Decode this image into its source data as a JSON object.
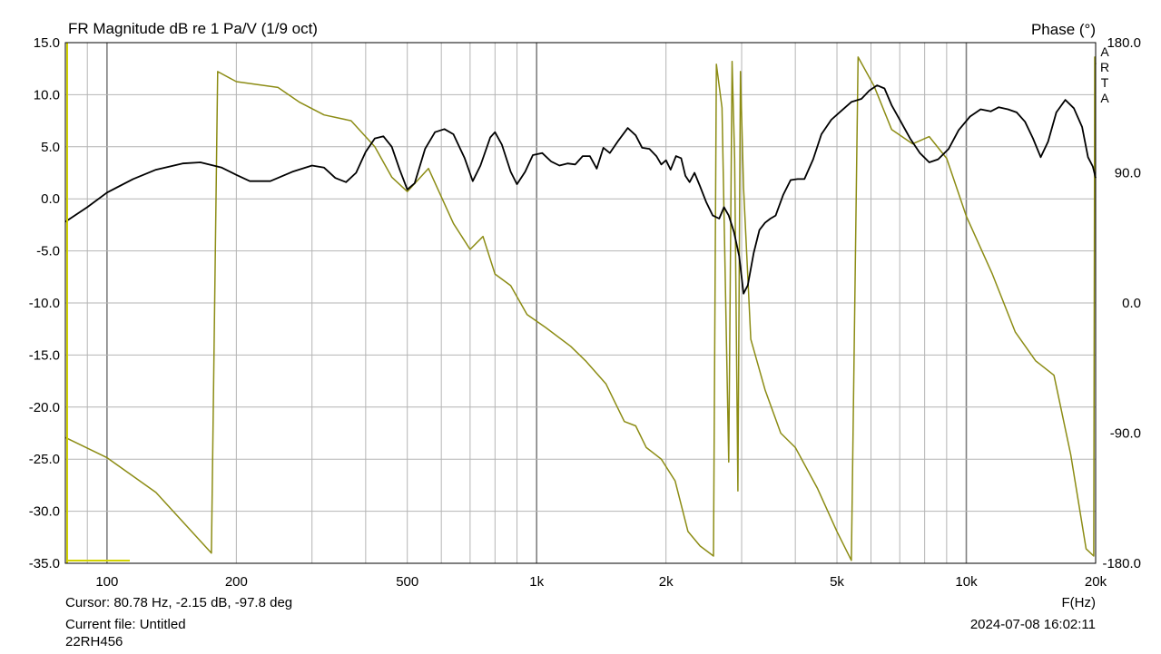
{
  "app": {
    "title": "FR Magnitude dB re 1 Pa/V (1/9 oct)",
    "right_title": "Phase (°)",
    "brand": "ARTA",
    "x_unit": "F(Hz)",
    "cursor": "Cursor: 80.78 Hz, -2.15 dB, -97.8 deg",
    "current_file": "Current file: Untitled",
    "model": "22RH456",
    "timestamp": "2024-07-08  16:02:11"
  },
  "colors": {
    "background": "#ffffff",
    "grid": "#b4b4b4",
    "grid_major": "#808080",
    "magnitude": "#000000",
    "phase": "#8c8c14",
    "marker": "#d2d200"
  },
  "chart_data": {
    "type": "line",
    "title": "FR Magnitude dB re 1 Pa/V (1/9 oct)",
    "xlabel": "F(Hz)",
    "ylabel": "",
    "y2label": "Phase (°)",
    "x_scale": "log",
    "xlim": [
      80,
      20000
    ],
    "ylim": [
      -35,
      15
    ],
    "y2lim": [
      -180,
      180
    ],
    "grid": true,
    "x_tick_labels": [
      {
        "value": 100,
        "label": "100"
      },
      {
        "value": 200,
        "label": "200"
      },
      {
        "value": 500,
        "label": "500"
      },
      {
        "value": 1000,
        "label": "1k"
      },
      {
        "value": 2000,
        "label": "2k"
      },
      {
        "value": 5000,
        "label": "5k"
      },
      {
        "value": 10000,
        "label": "10k"
      },
      {
        "value": 20000,
        "label": "20k"
      }
    ],
    "y_ticks": [
      {
        "value": 15,
        "label": "15.0"
      },
      {
        "value": 10,
        "label": "10.0"
      },
      {
        "value": 5,
        "label": "5.0"
      },
      {
        "value": 0,
        "label": "0.0"
      },
      {
        "value": -5,
        "label": "-5.0"
      },
      {
        "value": -10,
        "label": "-10.0"
      },
      {
        "value": -15,
        "label": "-15.0"
      },
      {
        "value": -20,
        "label": "-20.0"
      },
      {
        "value": -25,
        "label": "-25.0"
      },
      {
        "value": -30,
        "label": "-30.0"
      },
      {
        "value": -35,
        "label": "-35.0"
      }
    ],
    "y2_ticks": [
      {
        "value": 180,
        "label": "180.0"
      },
      {
        "value": 90,
        "label": "90.0"
      },
      {
        "value": 0,
        "label": "0.0"
      },
      {
        "value": -90,
        "label": "-90.0"
      },
      {
        "value": -180,
        "label": "-180.0"
      }
    ],
    "cursor_freq": 80.78,
    "series": [
      {
        "axis": "left",
        "color": "#000000",
        "points": [
          [
            80,
            -2.2
          ],
          [
            90,
            -0.8
          ],
          [
            100,
            0.6
          ],
          [
            115,
            1.9
          ],
          [
            130,
            2.8
          ],
          [
            150,
            3.4
          ],
          [
            165,
            3.5
          ],
          [
            185,
            3.0
          ],
          [
            200,
            2.3
          ],
          [
            215,
            1.7
          ],
          [
            240,
            1.7
          ],
          [
            270,
            2.6
          ],
          [
            300,
            3.2
          ],
          [
            320,
            3.0
          ],
          [
            340,
            2.0
          ],
          [
            360,
            1.6
          ],
          [
            380,
            2.5
          ],
          [
            400,
            4.5
          ],
          [
            420,
            5.8
          ],
          [
            440,
            6.0
          ],
          [
            460,
            5.0
          ],
          [
            480,
            2.8
          ],
          [
            500,
            0.9
          ],
          [
            520,
            1.5
          ],
          [
            550,
            4.8
          ],
          [
            580,
            6.4
          ],
          [
            610,
            6.7
          ],
          [
            640,
            6.2
          ],
          [
            680,
            3.9
          ],
          [
            710,
            1.7
          ],
          [
            740,
            3.2
          ],
          [
            780,
            5.9
          ],
          [
            800,
            6.4
          ],
          [
            830,
            5.2
          ],
          [
            870,
            2.6
          ],
          [
            900,
            1.4
          ],
          [
            940,
            2.6
          ],
          [
            980,
            4.2
          ],
          [
            1030,
            4.4
          ],
          [
            1080,
            3.6
          ],
          [
            1130,
            3.2
          ],
          [
            1180,
            3.4
          ],
          [
            1230,
            3.3
          ],
          [
            1280,
            4.1
          ],
          [
            1330,
            4.1
          ],
          [
            1380,
            2.9
          ],
          [
            1430,
            4.9
          ],
          [
            1480,
            4.4
          ],
          [
            1550,
            5.6
          ],
          [
            1630,
            6.8
          ],
          [
            1700,
            6.1
          ],
          [
            1760,
            4.9
          ],
          [
            1830,
            4.8
          ],
          [
            1900,
            4.1
          ],
          [
            1950,
            3.3
          ],
          [
            2000,
            3.7
          ],
          [
            2050,
            2.8
          ],
          [
            2110,
            4.1
          ],
          [
            2170,
            3.9
          ],
          [
            2220,
            2.2
          ],
          [
            2270,
            1.6
          ],
          [
            2330,
            2.5
          ],
          [
            2400,
            1.2
          ],
          [
            2480,
            -0.3
          ],
          [
            2570,
            -1.6
          ],
          [
            2660,
            -1.9
          ],
          [
            2730,
            -0.8
          ],
          [
            2800,
            -1.6
          ],
          [
            2880,
            -3.2
          ],
          [
            2960,
            -5.5
          ],
          [
            3030,
            -9.1
          ],
          [
            3100,
            -8.3
          ],
          [
            3200,
            -5.2
          ],
          [
            3300,
            -3.0
          ],
          [
            3400,
            -2.3
          ],
          [
            3500,
            -1.9
          ],
          [
            3600,
            -1.6
          ],
          [
            3750,
            0.4
          ],
          [
            3900,
            1.8
          ],
          [
            4050,
            1.9
          ],
          [
            4200,
            1.9
          ],
          [
            4400,
            3.8
          ],
          [
            4600,
            6.2
          ],
          [
            4850,
            7.6
          ],
          [
            5100,
            8.4
          ],
          [
            5400,
            9.3
          ],
          [
            5700,
            9.6
          ],
          [
            5950,
            10.4
          ],
          [
            6200,
            10.9
          ],
          [
            6450,
            10.6
          ],
          [
            6700,
            9.0
          ],
          [
            7000,
            7.6
          ],
          [
            7400,
            5.8
          ],
          [
            7800,
            4.4
          ],
          [
            8200,
            3.5
          ],
          [
            8600,
            3.8
          ],
          [
            9100,
            4.8
          ],
          [
            9600,
            6.6
          ],
          [
            10200,
            7.9
          ],
          [
            10800,
            8.6
          ],
          [
            11400,
            8.4
          ],
          [
            11900,
            8.8
          ],
          [
            12500,
            8.6
          ],
          [
            13100,
            8.3
          ],
          [
            13700,
            7.4
          ],
          [
            14300,
            5.8
          ],
          [
            14900,
            4.0
          ],
          [
            15500,
            5.5
          ],
          [
            16200,
            8.3
          ],
          [
            17000,
            9.5
          ],
          [
            17800,
            8.7
          ],
          [
            18600,
            6.9
          ],
          [
            19200,
            4.0
          ],
          [
            19700,
            3.1
          ],
          [
            20000,
            2.0
          ]
        ]
      },
      {
        "axis": "right",
        "color": "#8c8c14",
        "points": [
          [
            80,
            -93
          ],
          [
            100,
            -107
          ],
          [
            130,
            -131
          ],
          [
            175,
            -173
          ],
          [
            181,
            160
          ],
          [
            200,
            153
          ],
          [
            250,
            149
          ],
          [
            280,
            139
          ],
          [
            320,
            130
          ],
          [
            370,
            126
          ],
          [
            420,
            108
          ],
          [
            460,
            87
          ],
          [
            500,
            77
          ],
          [
            560,
            93
          ],
          [
            640,
            55
          ],
          [
            700,
            37
          ],
          [
            750,
            46
          ],
          [
            800,
            20
          ],
          [
            870,
            12
          ],
          [
            950,
            -8
          ],
          [
            1050,
            -17
          ],
          [
            1200,
            -30
          ],
          [
            1300,
            -40
          ],
          [
            1450,
            -56
          ],
          [
            1600,
            -82
          ],
          [
            1700,
            -85
          ],
          [
            1800,
            -100
          ],
          [
            1950,
            -108
          ],
          [
            2100,
            -123
          ],
          [
            2250,
            -158
          ],
          [
            2400,
            -168
          ],
          [
            2580,
            -175
          ],
          [
            2620,
            165
          ],
          [
            2700,
            135
          ],
          [
            2800,
            -110
          ],
          [
            2850,
            167
          ],
          [
            2890,
            100
          ],
          [
            2940,
            -130
          ],
          [
            2980,
            160
          ],
          [
            3030,
            80
          ],
          [
            3150,
            -25
          ],
          [
            3400,
            -60
          ],
          [
            3700,
            -90
          ],
          [
            4000,
            -100
          ],
          [
            4500,
            -128
          ],
          [
            5000,
            -158
          ],
          [
            5400,
            -178
          ],
          [
            5600,
            170
          ],
          [
            6100,
            150
          ],
          [
            6700,
            120
          ],
          [
            7500,
            110
          ],
          [
            8200,
            115
          ],
          [
            9000,
            100
          ],
          [
            10000,
            60
          ],
          [
            11500,
            20
          ],
          [
            13000,
            -20
          ],
          [
            14500,
            -40
          ],
          [
            16000,
            -50
          ],
          [
            17500,
            -105
          ],
          [
            19000,
            -170
          ],
          [
            19800,
            -175
          ],
          [
            19900,
            170
          ],
          [
            20000,
            165
          ]
        ]
      }
    ]
  }
}
